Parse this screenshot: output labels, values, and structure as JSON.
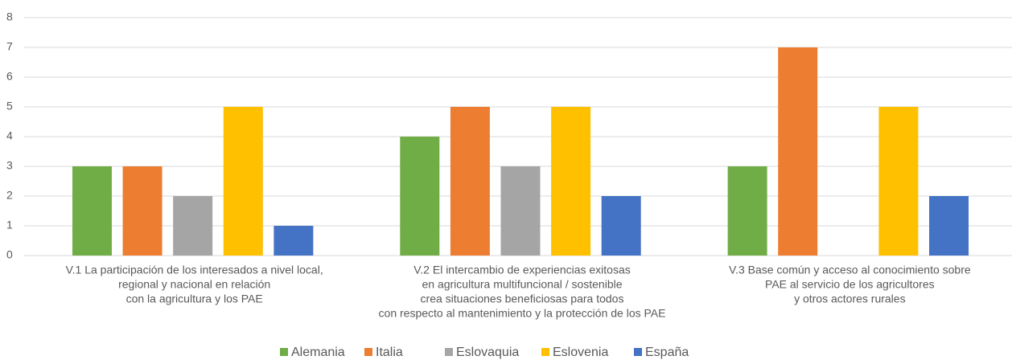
{
  "chart_data": {
    "type": "bar",
    "categories": [
      [
        "V.1 La participación de los interesados a nivel local,",
        "regional y nacional en relación",
        "con la agricultura y los PAE"
      ],
      [
        "V.2 El intercambio de experiencias exitosas",
        "en agricultura multifuncional / sostenible",
        "crea situaciones beneficiosas para todos",
        "con respecto al mantenimiento y la protección de los PAE"
      ],
      [
        "V.3 Base común y acceso al conocimiento sobre",
        "PAE al servicio de los agricultores",
        "y otros actores rurales"
      ]
    ],
    "series": [
      {
        "name": "Alemania",
        "color": "#70ad47",
        "values": [
          3,
          4,
          3
        ]
      },
      {
        "name": "Italia",
        "color": "#ed7d31",
        "values": [
          3,
          5,
          7
        ]
      },
      {
        "name": "Eslovaquia",
        "color": "#a5a5a5",
        "values": [
          2,
          3,
          0
        ]
      },
      {
        "name": "Eslovenia",
        "color": "#ffc000",
        "values": [
          5,
          5,
          5
        ]
      },
      {
        "name": "España",
        "color": "#4472c4",
        "values": [
          1,
          2,
          2
        ]
      }
    ],
    "ylim": [
      0,
      8
    ],
    "yticks": [
      0,
      1,
      2,
      3,
      4,
      5,
      6,
      7,
      8
    ],
    "grid": true,
    "legend": "bottom"
  }
}
